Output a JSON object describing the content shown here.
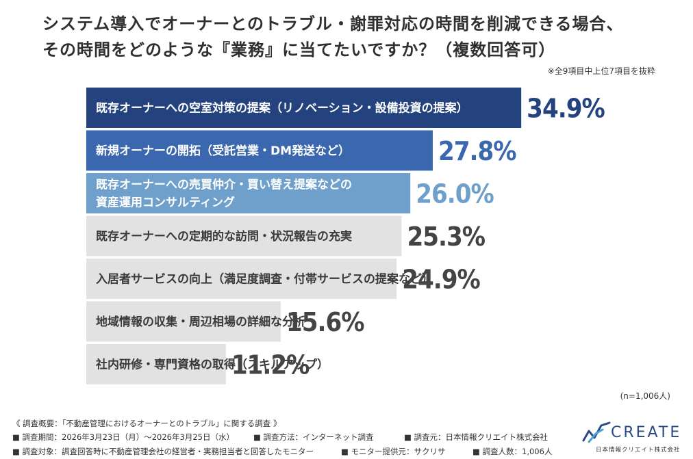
{
  "title": {
    "line1": "システム導入でオーナーとのトラブル・謝罪対応の時間を削減できる場合、",
    "line2": "その時間をどのような『業務』に当てたいですか？（複数回答可）"
  },
  "note": "※全9項目中上位7項目を抜粋",
  "sample": "(n=1,006人)",
  "chart_data": {
    "type": "bar",
    "orientation": "horizontal",
    "categories": [
      [
        "既存オーナーへの空室対策の提案（リノベーション・設備投資の提案）"
      ],
      [
        "新規オーナーの開拓（受託営業・DM発送など）"
      ],
      [
        "既存オーナーへの売買仲介・買い替え提案などの",
        "資産運用コンサルティング"
      ],
      [
        "既存オーナーへの定期的な訪問・状況報告の充実"
      ],
      [
        "入居者サービスの向上（満足度調査・付帯サービスの提案など）"
      ],
      [
        "地域情報の収集・周辺相場の詳細な分析"
      ],
      [
        "社内研修・専門資格の取得（スキルアップ）"
      ]
    ],
    "values": [
      34.9,
      27.8,
      26.0,
      25.3,
      24.9,
      15.6,
      11.2
    ],
    "value_labels": [
      "34.9%",
      "27.8%",
      "26.0%",
      "25.3%",
      "24.9%",
      "15.6%",
      "11.2%"
    ],
    "bar_colors": [
      "#24437e",
      "#3b67ae",
      "#6f9fcb",
      "#e2e2e2",
      "#e2e2e2",
      "#e2e2e2",
      "#e2e2e2"
    ],
    "value_colors": [
      "#24437e",
      "#3b67ae",
      "#6f9fcb",
      "#444444",
      "#444444",
      "#444444",
      "#444444"
    ],
    "label_colors": [
      "#ffffff",
      "#ffffff",
      "#ffffff",
      "#3a3a3a",
      "#3a3a3a",
      "#3a3a3a",
      "#3a3a3a"
    ]
  },
  "footer": {
    "heading": "《 調査概要：「不動産管理におけるオーナーとのトラブル」に関する調査 》",
    "row1": [
      "■ 調査期間：2026年3月23日（月）～2026年3月25日（水）",
      "■ 調査方法：インターネット調査",
      "■ 調査元：日本情報クリエイト株式会社"
    ],
    "row2": [
      "■ 調査対象：調査回答時に不動産管理会社の経営者・実務担当者と回答したモニター",
      "■ モニター提供元：サクリサ",
      "■ 調査人数：1,006人"
    ]
  },
  "logo": {
    "word": "CREATE",
    "sub": "日本情報クリエイト株式会社",
    "accent": "#4aa3d8"
  }
}
